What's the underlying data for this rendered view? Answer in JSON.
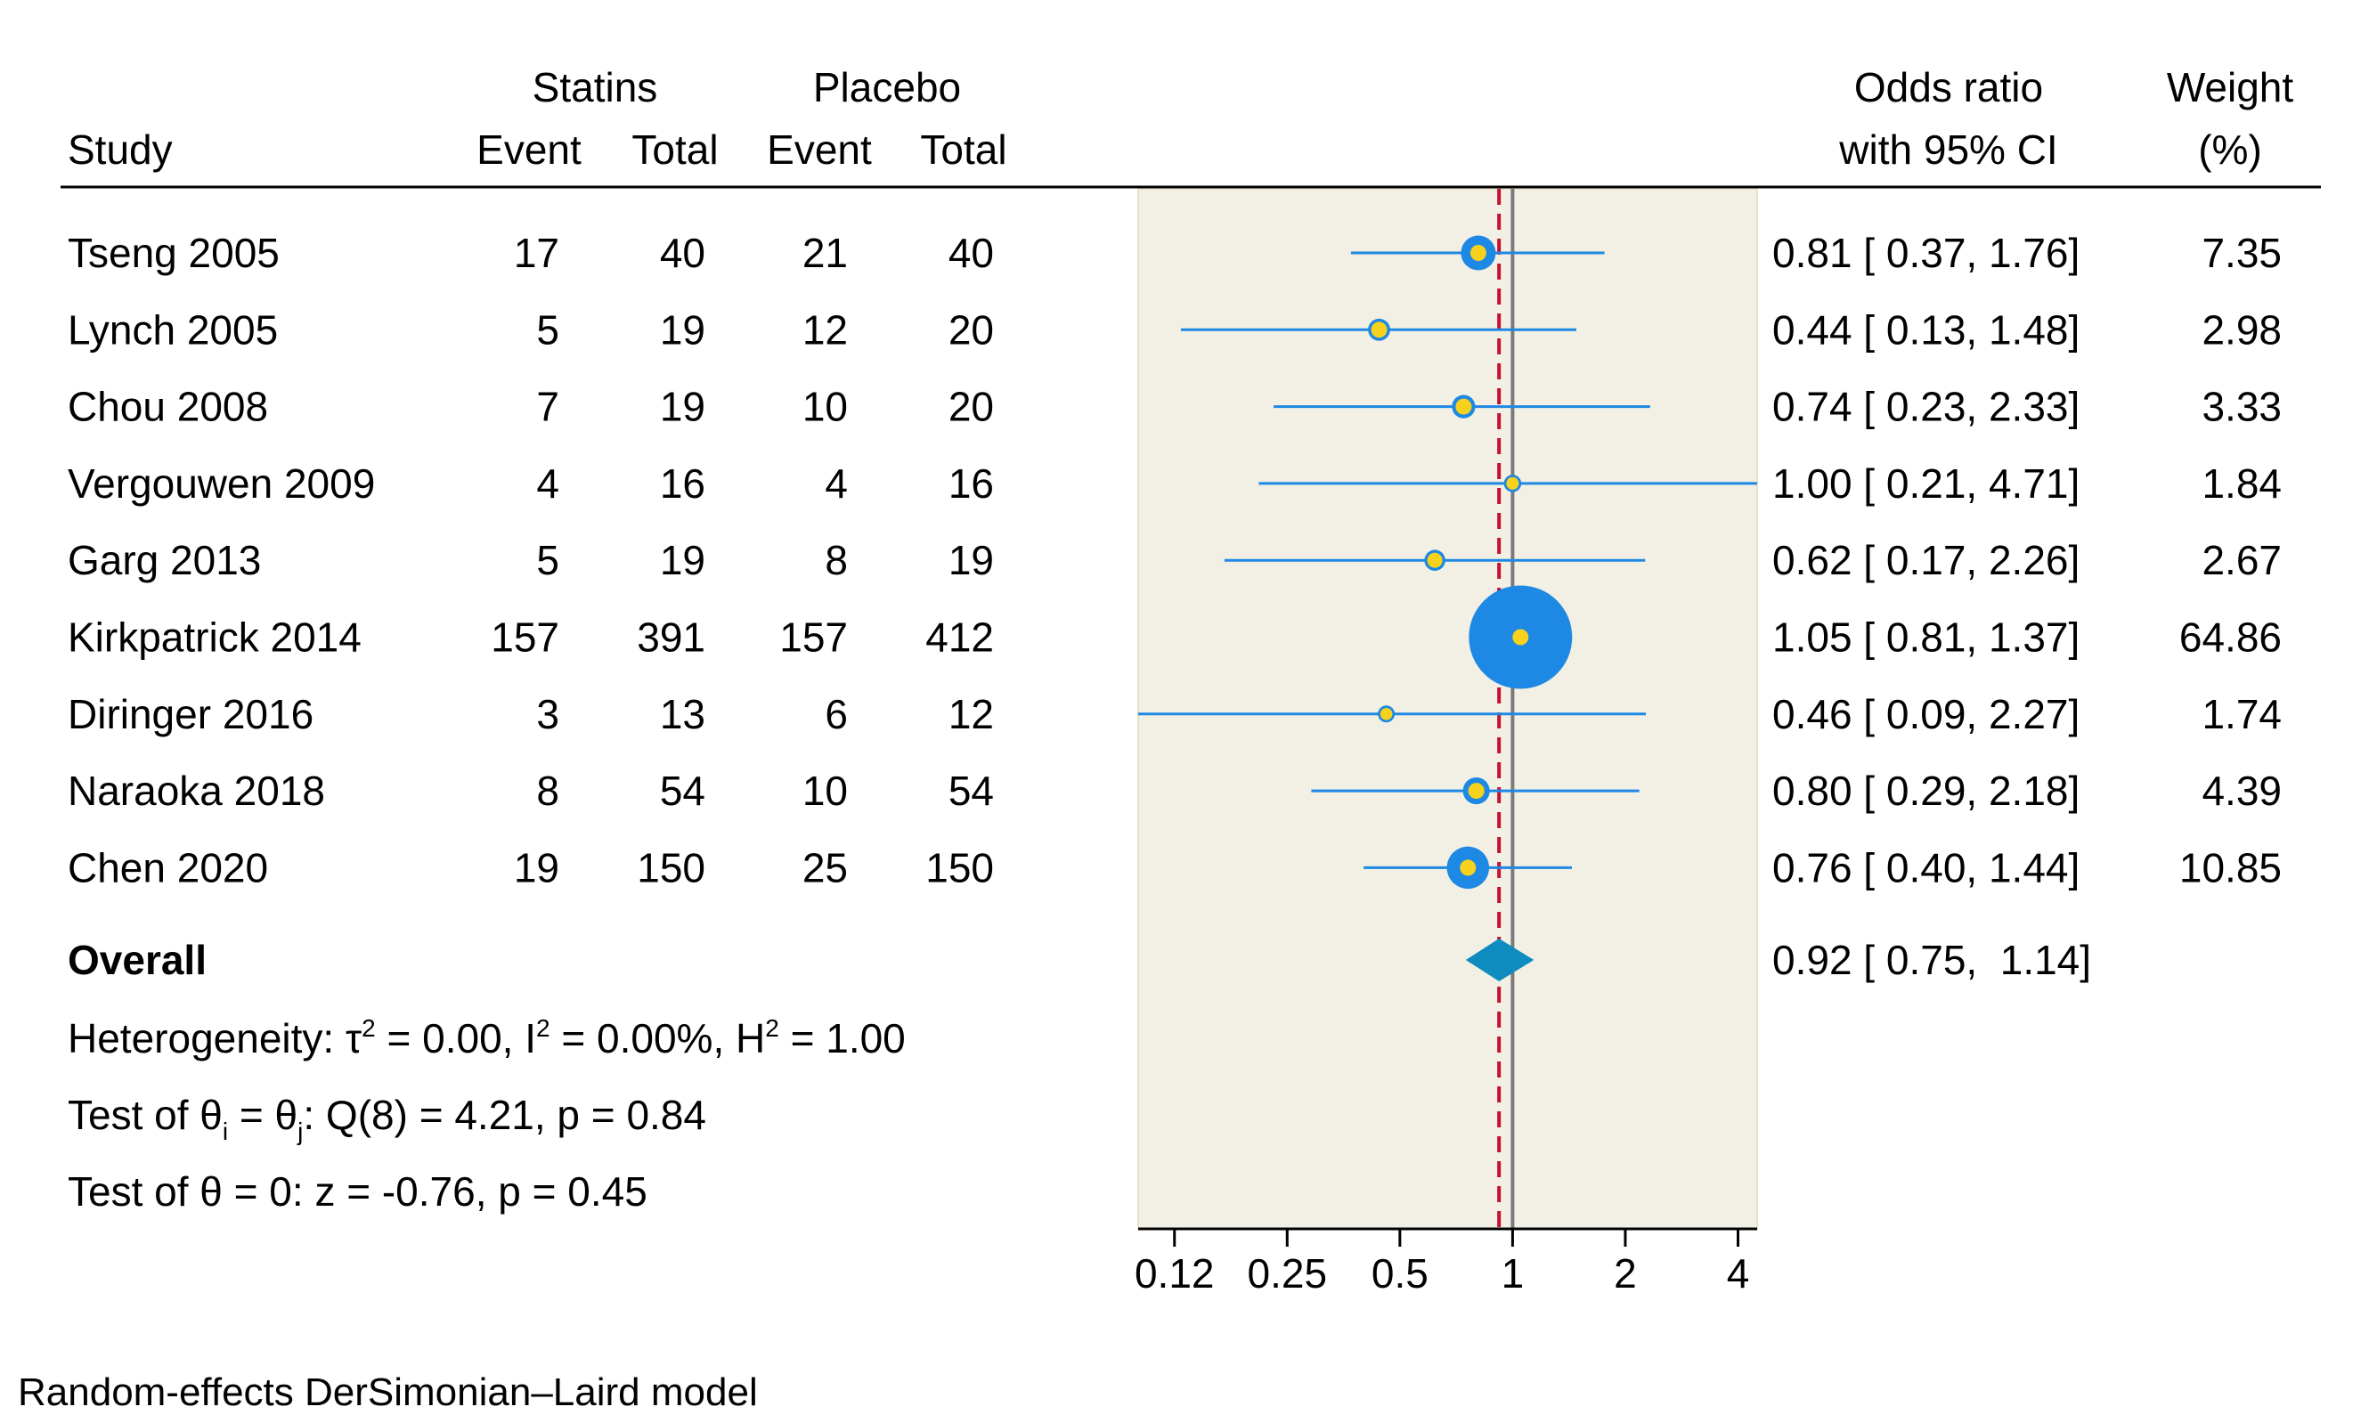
{
  "chart_data": {
    "type": "forest",
    "header": {
      "group1": "Statins",
      "group2": "Placebo",
      "study": "Study",
      "event": "Event",
      "total": "Total",
      "or_line1": "Odds ratio",
      "or_line2": "with 95% CI",
      "weight_line1": "Weight",
      "weight_line2": "(%)"
    },
    "studies": [
      {
        "name": "Tseng 2005",
        "e1": "17",
        "n1": "40",
        "e2": "21",
        "n2": "40",
        "or": 0.81,
        "lo": 0.37,
        "hi": 1.76,
        "ci_text": "0.81 [ 0.37,  1.76]",
        "weight": 7.35,
        "weight_text": "7.35"
      },
      {
        "name": "Lynch 2005",
        "e1": "5",
        "n1": "19",
        "e2": "12",
        "n2": "20",
        "or": 0.44,
        "lo": 0.13,
        "hi": 1.48,
        "ci_text": "0.44 [ 0.13,  1.48]",
        "weight": 2.98,
        "weight_text": "2.98"
      },
      {
        "name": "Chou 2008",
        "e1": "7",
        "n1": "19",
        "e2": "10",
        "n2": "20",
        "or": 0.74,
        "lo": 0.23,
        "hi": 2.33,
        "ci_text": "0.74 [ 0.23,  2.33]",
        "weight": 3.33,
        "weight_text": "3.33"
      },
      {
        "name": "Vergouwen 2009",
        "e1": "4",
        "n1": "16",
        "e2": "4",
        "n2": "16",
        "or": 1.0,
        "lo": 0.21,
        "hi": 4.71,
        "ci_text": "1.00 [ 0.21,  4.71]",
        "weight": 1.84,
        "weight_text": "1.84"
      },
      {
        "name": "Garg 2013",
        "e1": "5",
        "n1": "19",
        "e2": "8",
        "n2": "19",
        "or": 0.62,
        "lo": 0.17,
        "hi": 2.26,
        "ci_text": "0.62 [ 0.17,  2.26]",
        "weight": 2.67,
        "weight_text": "2.67"
      },
      {
        "name": "Kirkpatrick 2014",
        "e1": "157",
        "n1": "391",
        "e2": "157",
        "n2": "412",
        "or": 1.05,
        "lo": 0.81,
        "hi": 1.37,
        "ci_text": "1.05 [ 0.81,  1.37]",
        "weight": 64.86,
        "weight_text": "64.86"
      },
      {
        "name": "Diringer 2016",
        "e1": "3",
        "n1": "13",
        "e2": "6",
        "n2": "12",
        "or": 0.46,
        "lo": 0.09,
        "hi": 2.27,
        "ci_text": "0.46 [ 0.09,  2.27]",
        "weight": 1.74,
        "weight_text": "1.74"
      },
      {
        "name": "Naraoka 2018",
        "e1": "8",
        "n1": "54",
        "e2": "10",
        "n2": "54",
        "or": 0.8,
        "lo": 0.29,
        "hi": 2.18,
        "ci_text": "0.80 [ 0.29,  2.18]",
        "weight": 4.39,
        "weight_text": "4.39"
      },
      {
        "name": "Chen 2020",
        "e1": "19",
        "n1": "150",
        "e2": "25",
        "n2": "150",
        "or": 0.76,
        "lo": 0.4,
        "hi": 1.44,
        "ci_text": "0.76 [ 0.40,  1.44]",
        "weight": 10.85,
        "weight_text": "10.85"
      }
    ],
    "overall": {
      "label": "Overall",
      "or": 0.92,
      "lo": 0.75,
      "hi": 1.14,
      "ci_text": "0.92 [ 0.75,  1.14]"
    },
    "heterogeneity": {
      "prefix": "Heterogeneity: τ",
      "tau_sup": "2",
      "tau_val": " = 0.00, I",
      "i_sup": "2",
      "i_val": " = 0.00%, H",
      "h_sup": "2",
      "h_val": " = 1.00"
    },
    "test_q": {
      "p1": "Test of θ",
      "sub_i": "i",
      "p2": " = θ",
      "sub_j": "j",
      "p3": ": Q(8) = 4.21, p = 0.84"
    },
    "test_z": "Test of θ = 0: z = -0.76, p = 0.45",
    "x_axis": {
      "scale": "log",
      "range": [
        0.1,
        4.5
      ],
      "ticks": [
        0.125,
        0.25,
        0.5,
        1,
        2,
        4
      ],
      "tick_labels": [
        "0.12",
        "0.25",
        "0.5",
        "1",
        "2",
        "4"
      ]
    },
    "null_value": 1,
    "footnote": "Random-effects DerSimonian–Laird model",
    "colors": {
      "plot_bg": "#f2f0e4",
      "ci_line": "#1e88e5",
      "marker_fill": "#f7d21c",
      "marker_edge": "#1e88e5",
      "diamond": "#0e8bbf",
      "null_line": "#7a7a7a",
      "overall_line": "#c8102e"
    }
  }
}
